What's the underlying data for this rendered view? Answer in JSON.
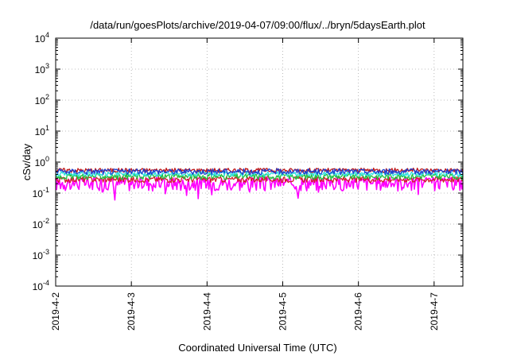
{
  "chart_data": {
    "type": "line",
    "title": "/data/run/goesPlots/archive/2019-04-07/09:00/flux/../bryn/5daysEarth.plot",
    "xlabel": "Coordinated Universal Time (UTC)",
    "ylabel": "cSv/day",
    "x_ticks": [
      "2019-4-2",
      "2019-4-3",
      "2019-4-4",
      "2019-4-5",
      "2019-4-6",
      "2019-4-7"
    ],
    "x_range_days": [
      2.0,
      7.38
    ],
    "y_scale": "log",
    "ylim": [
      0.0001,
      10000
    ],
    "y_ticks": [
      {
        "base": "10",
        "exp": "-4",
        "value": 0.0001
      },
      {
        "base": "10",
        "exp": "-3",
        "value": 0.001
      },
      {
        "base": "10",
        "exp": "-2",
        "value": 0.01
      },
      {
        "base": "10",
        "exp": "-1",
        "value": 0.1
      },
      {
        "base": "10",
        "exp": "0",
        "value": 1
      },
      {
        "base": "10",
        "exp": "1",
        "value": 10
      },
      {
        "base": "10",
        "exp": "2",
        "value": 100
      },
      {
        "base": "10",
        "exp": "3",
        "value": 1000
      },
      {
        "base": "10",
        "exp": "4",
        "value": 10000
      }
    ],
    "grid": true,
    "series": [
      {
        "color": "#ff00ff",
        "level": 0.22,
        "noise": 0.07,
        "dips": true
      },
      {
        "color": "#d0202a",
        "level": 0.28,
        "noise": 0.04,
        "dips": false
      },
      {
        "color": "#20c040",
        "level": 0.35,
        "noise": 0.05,
        "dips": false
      },
      {
        "color": "#30e0e0",
        "level": 0.42,
        "noise": 0.05,
        "dips": false
      },
      {
        "color": "#c01818",
        "level": 0.55,
        "noise": 0.06,
        "dips": false
      },
      {
        "color": "#1f3fd0",
        "level": 0.5,
        "noise": 0.07,
        "dips": false
      }
    ]
  }
}
